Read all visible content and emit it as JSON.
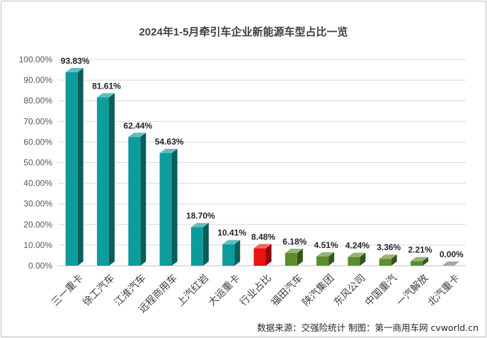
{
  "chart_data": {
    "type": "bar",
    "title": "2024年1-5月牵引车企业新能源车型占比一览",
    "categories": [
      "三一重卡",
      "徐工汽车",
      "江淮汽车",
      "远程商用车",
      "上汽红岩",
      "大运重卡",
      "行业占比",
      "福田汽车",
      "陕汽集团",
      "东风公司",
      "中国重汽",
      "一汽解放",
      "北汽重卡"
    ],
    "values": [
      93.83,
      81.61,
      62.44,
      54.63,
      18.7,
      10.41,
      8.48,
      6.18,
      4.51,
      4.24,
      3.36,
      2.21,
      0.0
    ],
    "data_labels": [
      "93.83%",
      "81.61%",
      "62.44%",
      "54.63%",
      "18.70%",
      "10.41%",
      "8.48%",
      "6.18%",
      "4.51%",
      "4.24%",
      "3.36%",
      "2.21%",
      "0.00%"
    ],
    "bar_colors": [
      "#0e9b9b",
      "#0e9b9b",
      "#0e9b9b",
      "#0e9b9b",
      "#0e9b9b",
      "#0e9b9b",
      "#ee1111",
      "#5a8d2b",
      "#5a8d2b",
      "#5a8d2b",
      "#5a8d2b",
      "#5a8d2b",
      "#a6a6a6"
    ],
    "highlight_label_color": "#ee1111",
    "ylim": [
      0,
      100
    ],
    "y_ticks": [
      "0.00%",
      "10.00%",
      "20.00%",
      "30.00%",
      "40.00%",
      "50.00%",
      "60.00%",
      "70.00%",
      "80.00%",
      "90.00%",
      "100.00%"
    ],
    "grid": true,
    "xlabel": "",
    "ylabel": ""
  },
  "source_note": "数据来源：交强险统计   制图：第一商用车网 cvworld.cn"
}
